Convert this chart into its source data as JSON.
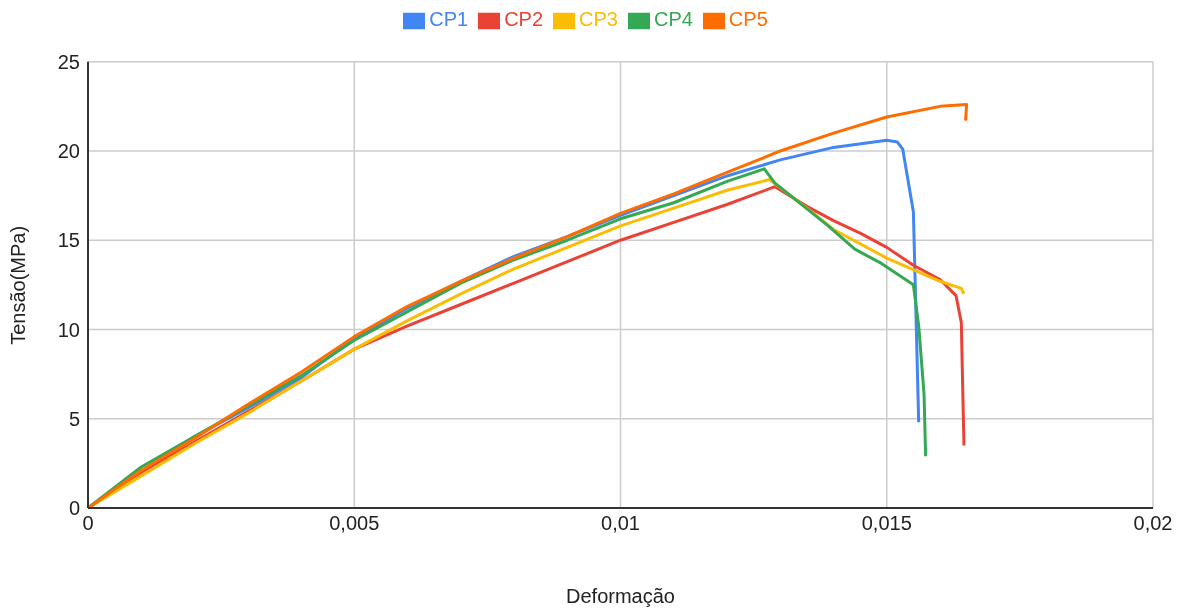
{
  "chart_data": {
    "type": "line",
    "xlabel": "Deformação",
    "ylabel": "Tensão(MPa)",
    "xlim": [
      0,
      0.02
    ],
    "xticks": [
      0,
      {
        "value": 0.005,
        "label": "0,005"
      },
      {
        "value": 0.01,
        "label": "0,01"
      },
      {
        "value": 0.015,
        "label": "0,015"
      },
      {
        "value": 0.02,
        "label": "0,02"
      }
    ],
    "ylim": [
      0,
      25
    ],
    "yticks": [
      0,
      5,
      10,
      15,
      20,
      25
    ],
    "grid": true,
    "legend": "top",
    "marker": "none",
    "line_style": "solid",
    "series": [
      {
        "name": "CP1",
        "color": "#4285f4",
        "x": [
          0,
          0.002,
          0.003,
          0.004,
          0.005,
          0.006,
          0.007,
          0.008,
          0.009,
          0.01,
          0.011,
          0.012,
          0.013,
          0.014,
          0.015,
          0.0152,
          0.0153,
          0.0155,
          0.0156
        ],
        "values": [
          0,
          4.0,
          5.6,
          7.3,
          9.5,
          11.2,
          12.7,
          14.1,
          15.2,
          16.4,
          17.5,
          18.6,
          19.5,
          20.2,
          20.6,
          20.5,
          20.1,
          16.6,
          4.8
        ]
      },
      {
        "name": "CP2",
        "color": "#ea4335",
        "x": [
          0,
          0.001,
          0.002,
          0.003,
          0.004,
          0.005,
          0.006,
          0.007,
          0.008,
          0.009,
          0.01,
          0.011,
          0.012,
          0.0129,
          0.0135,
          0.014,
          0.0145,
          0.015,
          0.0155,
          0.016,
          0.0163,
          0.0164,
          0.01645
        ],
        "values": [
          0,
          2.0,
          3.7,
          5.4,
          7.1,
          8.9,
          10.2,
          11.4,
          12.6,
          13.8,
          15.0,
          16.0,
          17.0,
          18.0,
          16.9,
          16.1,
          15.4,
          14.6,
          13.6,
          12.8,
          11.9,
          10.4,
          3.5
        ]
      },
      {
        "name": "CP3",
        "color": "#fbbc04",
        "x": [
          0,
          0.001,
          0.002,
          0.003,
          0.004,
          0.005,
          0.006,
          0.007,
          0.008,
          0.009,
          0.01,
          0.011,
          0.012,
          0.0128,
          0.0135,
          0.014,
          0.015,
          0.016,
          0.0164,
          0.01645
        ],
        "values": [
          0,
          1.8,
          3.6,
          5.3,
          7.1,
          8.9,
          10.5,
          12.0,
          13.4,
          14.6,
          15.8,
          16.8,
          17.8,
          18.4,
          16.8,
          15.6,
          14.0,
          12.7,
          12.3,
          12.0
        ]
      },
      {
        "name": "CP4",
        "color": "#34a853",
        "x": [
          0,
          0.001,
          0.002,
          0.003,
          0.004,
          0.005,
          0.006,
          0.007,
          0.008,
          0.009,
          0.01,
          0.011,
          0.012,
          0.0127,
          0.0129,
          0.0139,
          0.0144,
          0.0149,
          0.0155,
          0.0156,
          0.0157,
          0.01573
        ],
        "values": [
          0,
          2.3,
          4.0,
          5.7,
          7.4,
          9.4,
          11.0,
          12.6,
          13.9,
          15.0,
          16.2,
          17.1,
          18.3,
          19.0,
          18.2,
          15.8,
          14.5,
          13.7,
          12.5,
          10.2,
          6.4,
          2.9
        ]
      },
      {
        "name": "CP5",
        "color": "#ff6d01",
        "x": [
          0,
          0.001,
          0.002,
          0.003,
          0.004,
          0.005,
          0.006,
          0.007,
          0.008,
          0.009,
          0.01,
          0.011,
          0.012,
          0.013,
          0.014,
          0.015,
          0.016,
          0.0165,
          0.01648
        ],
        "values": [
          0,
          2.1,
          3.9,
          5.8,
          7.6,
          9.6,
          11.3,
          12.7,
          14.0,
          15.2,
          16.5,
          17.6,
          18.8,
          20.0,
          21.0,
          21.9,
          22.5,
          22.6,
          21.7
        ]
      }
    ]
  }
}
